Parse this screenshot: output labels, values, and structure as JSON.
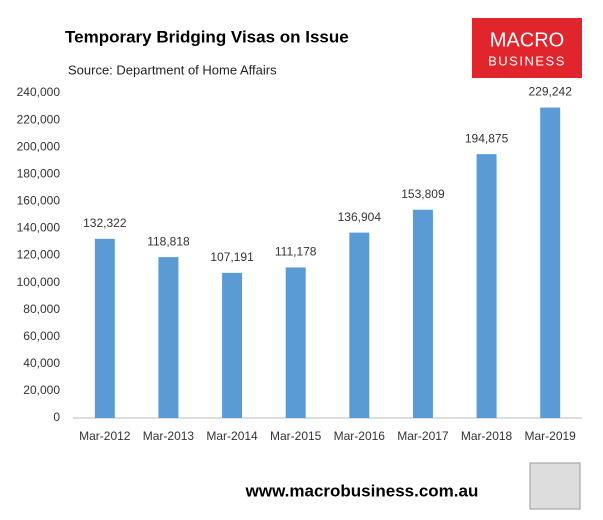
{
  "chart_data": {
    "type": "bar",
    "title": "Temporary Bridging Visas on Issue",
    "subtitle": "Source: Department of Home Affairs",
    "categories": [
      "Mar-2012",
      "Mar-2013",
      "Mar-2014",
      "Mar-2015",
      "Mar-2016",
      "Mar-2017",
      "Mar-2018",
      "Mar-2019"
    ],
    "values": [
      132322,
      118818,
      107191,
      111178,
      136904,
      153809,
      194875,
      229242
    ],
    "value_labels": [
      "132,322",
      "118,818",
      "107,191",
      "111,178",
      "136,904",
      "153,809",
      "194,875",
      "229,242"
    ],
    "color": "#5b9bd5",
    "ylim": [
      0,
      240000
    ],
    "yticks": [
      0,
      {
        "value": 20000,
        "label": "20,000"
      },
      {
        "value": 40000,
        "label": "40,000"
      },
      {
        "value": 60000,
        "label": "60,000"
      },
      {
        "value": 80000,
        "label": "80,000"
      },
      {
        "value": 100000,
        "label": "100,000"
      },
      {
        "value": 120000,
        "label": "120,000"
      },
      {
        "value": 140000,
        "label": "140,000"
      },
      {
        "value": 160000,
        "label": "160,000"
      },
      {
        "value": 180000,
        "label": "180,000"
      },
      {
        "value": 200000,
        "label": "200,000"
      },
      {
        "value": 220000,
        "label": "220,000"
      },
      {
        "value": 240000,
        "label": "240,000"
      }
    ],
    "grid": false
  },
  "logo": {
    "line1": "MACRO",
    "line2": "BUSINESS"
  },
  "footer": "www.macrobusiness.com.au"
}
